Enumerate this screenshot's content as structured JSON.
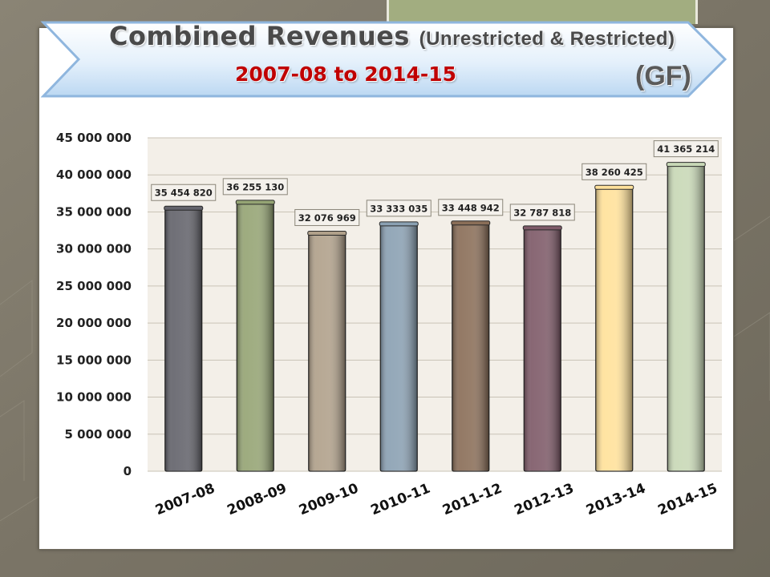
{
  "slide": {
    "title_main": "Combined Revenues",
    "title_paren": "(Unrestricted & Restricted)",
    "title_years": "2007-08 to 2014-15",
    "title_fund": "(GF)"
  },
  "colors": {
    "background": "#7d7668",
    "title_years": "#c00000",
    "tab": "#a2ad80"
  },
  "chart_data": {
    "type": "bar",
    "categories": [
      "2007-08",
      "2008-09",
      "2009-10",
      "2010-11",
      "2011-12",
      "2012-13",
      "2013-14",
      "2014-15"
    ],
    "values": [
      35454820,
      36255130,
      32076969,
      33333035,
      33448942,
      32787818,
      38260425,
      41365214
    ],
    "data_labels": [
      "35 454 820",
      "36 255 130",
      "32 076 969",
      "33 333 035",
      "33 448 942",
      "32 787 818",
      "38 260 425",
      "41 365 214"
    ],
    "bar_colors": [
      "#63636b",
      "#95a474",
      "#b0a08a",
      "#8aa0b2",
      "#8a6e58",
      "#7e5a68",
      "#ffe19a",
      "#c8d8b6"
    ],
    "yticks": [
      0,
      5000000,
      10000000,
      15000000,
      20000000,
      25000000,
      30000000,
      35000000,
      40000000,
      45000000
    ],
    "ytick_labels": [
      "0",
      "5 000 000",
      "10 000 000",
      "15 000 000",
      "20 000 000",
      "25 000 000",
      "30 000 000",
      "35 000 000",
      "40 000 000",
      "45 000 000"
    ],
    "ylim": [
      0,
      45000000
    ],
    "grid": true,
    "legend": "none",
    "xlabel": "",
    "ylabel": ""
  }
}
